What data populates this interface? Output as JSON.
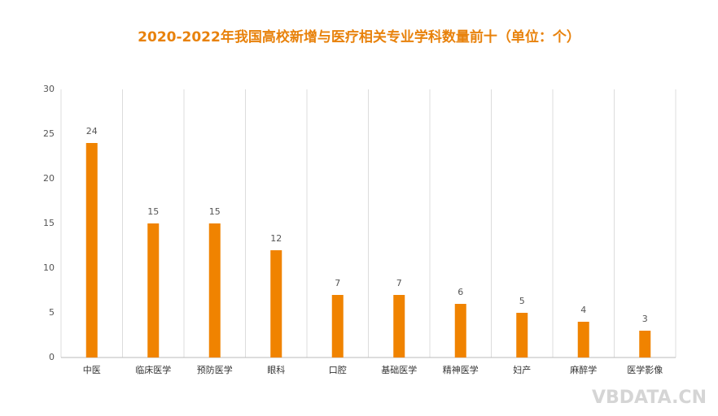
{
  "chart_data": {
    "type": "bar",
    "title": "2020-2022年我国高校新增与医疗相关专业学科数量前十（单位：个）",
    "categories": [
      "中医",
      "临床医学",
      "预防医学",
      "眼科",
      "口腔",
      "基础医学",
      "精神医学",
      "妇产",
      "麻醉学",
      "医学影像"
    ],
    "values": [
      24,
      15,
      15,
      12,
      7,
      7,
      6,
      5,
      4,
      3
    ],
    "color": "#f08300",
    "ylim": [
      0,
      30
    ],
    "yticks": [
      0,
      5,
      10,
      15,
      20,
      25,
      30
    ],
    "watermark": "VBDATA.CN"
  }
}
